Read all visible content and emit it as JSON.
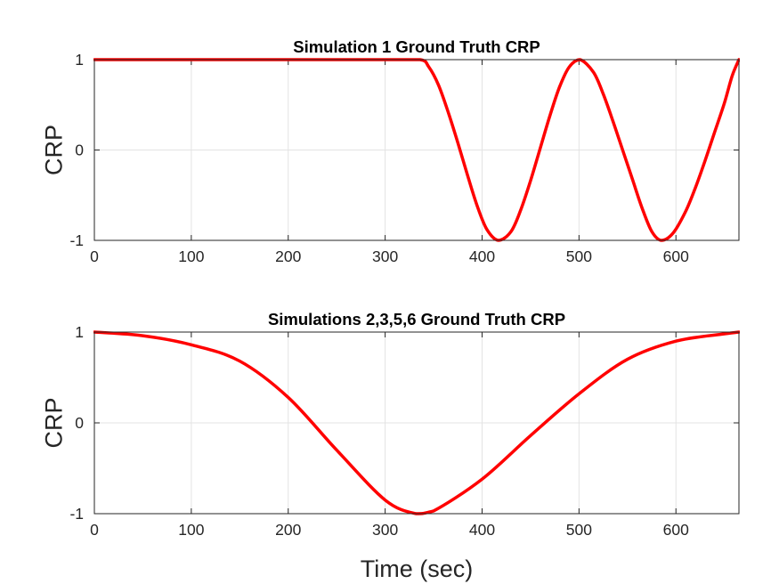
{
  "chart_data": [
    {
      "type": "line",
      "title": "Simulation 1 Ground Truth CRP",
      "xlabel": "",
      "ylabel": "CRP",
      "xlim": [
        0,
        665
      ],
      "ylim": [
        -1,
        1
      ],
      "xticks": [
        "0",
        "100",
        "200",
        "300",
        "400",
        "500",
        "600"
      ],
      "yticks": [
        "-1",
        "0",
        "1"
      ],
      "grid": true,
      "color": "#ff0000",
      "series": [
        {
          "x": [
            0,
            100,
            200,
            300,
            336,
            345,
            355,
            365,
            375,
            385,
            395,
            405,
            417,
            430,
            440,
            450,
            460,
            470,
            480,
            490,
            501,
            515,
            525,
            535,
            545,
            555,
            565,
            575,
            585,
            597,
            610,
            620,
            630,
            640,
            650,
            658,
            665
          ],
          "y": [
            1,
            1,
            1,
            1,
            1,
            0.92,
            0.72,
            0.42,
            0.08,
            -0.28,
            -0.62,
            -0.88,
            -1.0,
            -0.9,
            -0.66,
            -0.34,
            0.02,
            0.38,
            0.7,
            0.92,
            1.0,
            0.86,
            0.62,
            0.32,
            0.0,
            -0.32,
            -0.64,
            -0.9,
            -1.0,
            -0.92,
            -0.68,
            -0.42,
            -0.12,
            0.2,
            0.52,
            0.82,
            1.0
          ]
        }
      ]
    },
    {
      "type": "line",
      "title": "Simulations 2,3,5,6 Ground Truth CRP",
      "xlabel": "Time (sec)",
      "ylabel": "CRP",
      "xlim": [
        0,
        665
      ],
      "ylim": [
        -1,
        1
      ],
      "xticks": [
        "0",
        "100",
        "200",
        "300",
        "400",
        "500",
        "600"
      ],
      "yticks": [
        "-1",
        "0",
        "1"
      ],
      "grid": true,
      "color": "#ff0000",
      "series": [
        {
          "x": [
            0,
            50,
            100,
            150,
            200,
            250,
            300,
            332,
            350,
            400,
            450,
            500,
            550,
            600,
            650,
            665
          ],
          "y": [
            1,
            0.96,
            0.86,
            0.68,
            0.28,
            -0.3,
            -0.85,
            -1.0,
            -0.97,
            -0.62,
            -0.14,
            0.32,
            0.7,
            0.9,
            0.98,
            1.0
          ]
        }
      ]
    }
  ]
}
